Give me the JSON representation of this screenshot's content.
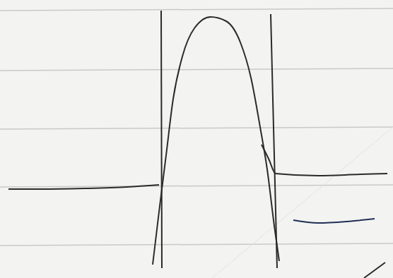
{
  "chart_data": {
    "type": "line",
    "tick_labels": false,
    "xlim": [
      0,
      556
    ],
    "ylim": [
      0,
      394
    ],
    "series": [
      {
        "color": "#2b2b2b",
        "x": [
          12,
          60,
          120,
          180,
          225
        ],
        "values": [
          126,
          126,
          127,
          129,
          132
        ]
      },
      {
        "color": "#2b2b2b",
        "x": [
          228,
          229
        ],
        "values": [
          379,
          14
        ]
      },
      {
        "color": "#2b2b2b",
        "x": [
          216,
          225,
          235,
          245,
          258,
          275,
          298,
          320,
          340,
          355,
          368,
          378,
          388,
          395
        ],
        "values": [
          19,
          94,
          174,
          254,
          314,
          354,
          370,
          364,
          334,
          284,
          214,
          154,
          74,
          24
        ]
      },
      {
        "color": "#2b2b2b",
        "x": [
          383,
          392
        ],
        "values": [
          374,
          14
        ]
      },
      {
        "color": "#2b2b2b",
        "x": [
          370,
          380,
          390,
          450,
          510,
          548
        ],
        "values": [
          189,
          169,
          148,
          145,
          147,
          148
        ]
      },
      {
        "color": "#1f2f55",
        "x": [
          415,
          450,
          490,
          530
        ],
        "values": [
          82,
          78,
          80,
          84
        ]
      },
      {
        "color": "#2b2b2b",
        "x": [
          515,
          545
        ],
        "values": [
          0,
          22
        ]
      }
    ]
  }
}
